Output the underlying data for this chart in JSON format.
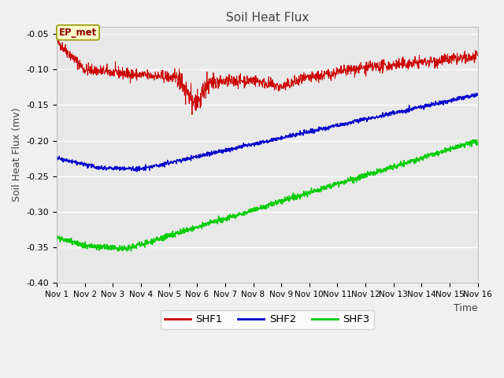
{
  "title": "Soil Heat Flux",
  "xlabel": "Time",
  "ylabel": "Soil Heat Flux (mv)",
  "xlim": [
    0,
    15
  ],
  "ylim": [
    -0.4,
    -0.04
  ],
  "yticks": [
    -0.4,
    -0.35,
    -0.3,
    -0.25,
    -0.2,
    -0.15,
    -0.1,
    -0.05
  ],
  "xtick_labels": [
    "Nov 1",
    "Nov 2",
    "Nov 3",
    "Nov 4",
    "Nov 5",
    "Nov 6",
    "Nov 7",
    "Nov 8",
    "Nov 9",
    "Nov 10",
    "Nov 11",
    "Nov 12",
    "Nov 13",
    "Nov 14",
    "Nov 15",
    "Nov 16"
  ],
  "annotation_text": "EP_met",
  "shf1_color": "#cc0000",
  "shf2_color": "#0000cc",
  "shf3_color": "#00cc00",
  "plot_bg": "#e8e8e8",
  "fig_bg": "#f0f0f0",
  "legend_labels": [
    "SHF1",
    "SHF2",
    "SHF3"
  ],
  "n_points": 1500
}
